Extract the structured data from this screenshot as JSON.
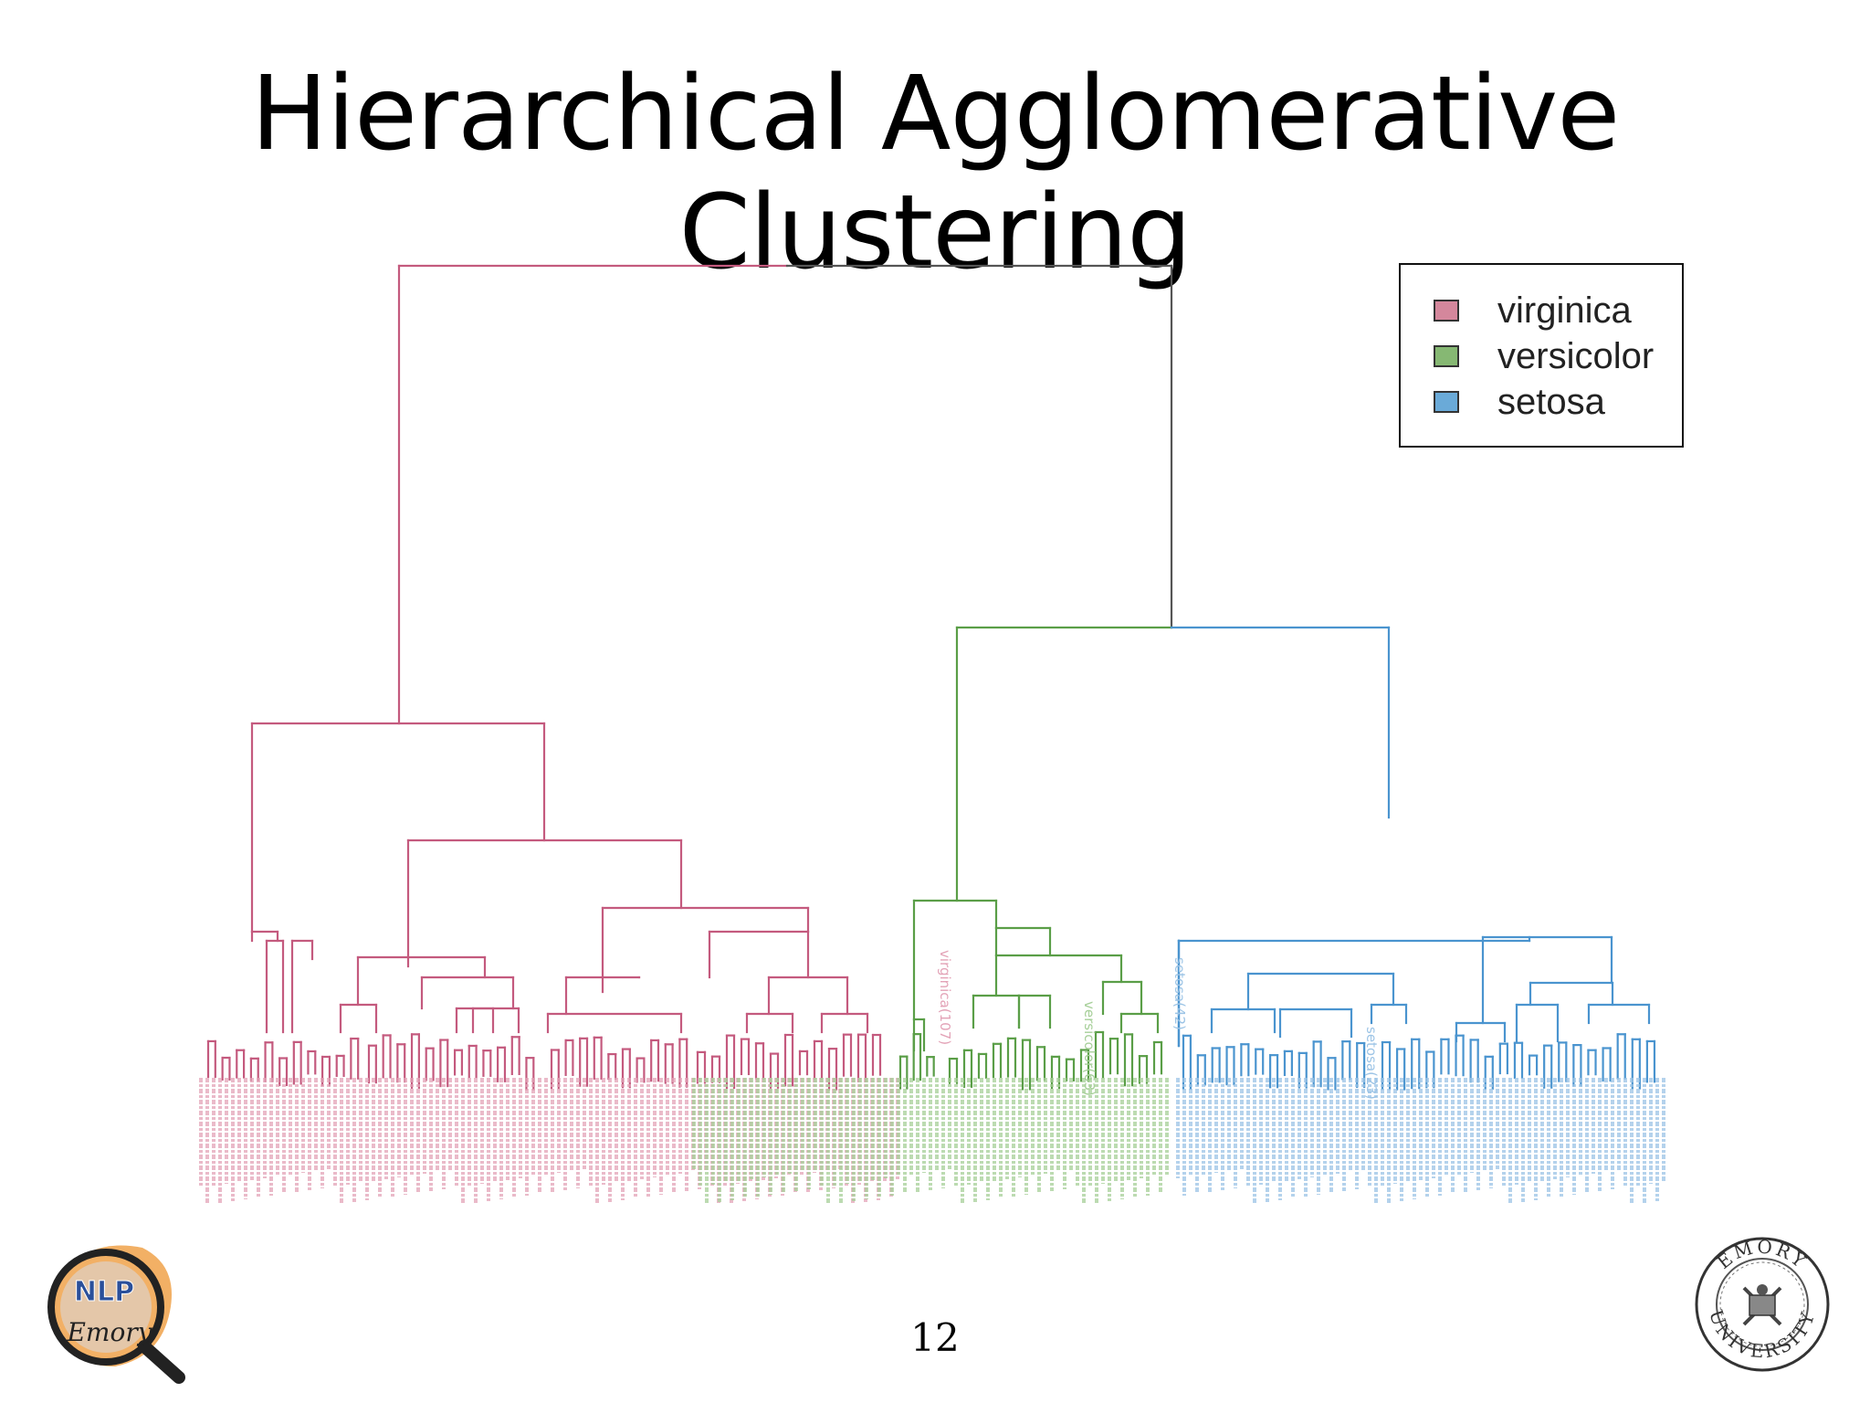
{
  "slide": {
    "title": "Hierarchical Agglomerative Clustering",
    "page_number": "12"
  },
  "legend": {
    "items": [
      {
        "label": "virginica",
        "color": "#d4879c"
      },
      {
        "label": "versicolor",
        "color": "#86b873"
      },
      {
        "label": "setosa",
        "color": "#6aaad8"
      }
    ]
  },
  "colors": {
    "root": "#555555",
    "virginica": "#c45a7e",
    "versicolor": "#5a9e47",
    "setosa": "#4a94cf",
    "virginica_label": "#e3a3b7",
    "versicolor_label": "#a6cf98",
    "setosa_label": "#9cc4e6"
  },
  "visible_leaf_labels": [
    "virginica(107)",
    "versicolor(63)",
    "setosa(42)",
    "setosa(23)"
  ],
  "logos": {
    "left": {
      "icon": "nlp-emory-logo",
      "text_top": "NLP",
      "text_bottom": "Emory"
    },
    "right": {
      "icon": "emory-university-seal",
      "text_top": "EMORY",
      "text_bottom": "UNIVERSITY"
    }
  }
}
